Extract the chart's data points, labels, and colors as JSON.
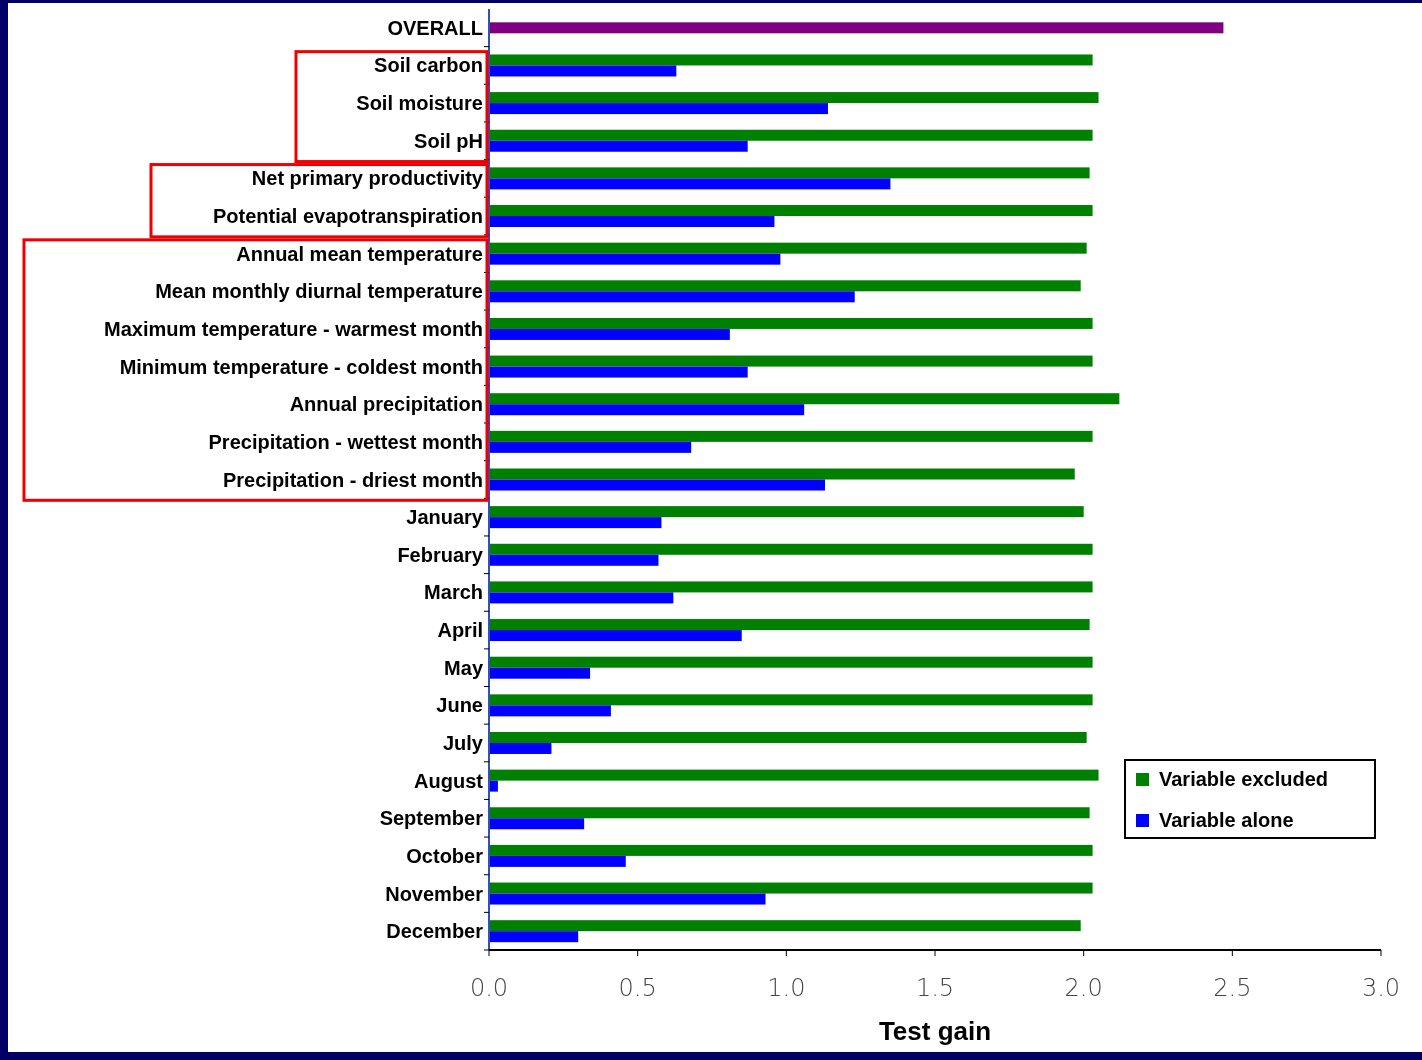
{
  "chart_data": {
    "type": "bar",
    "orientation": "horizontal",
    "xlabel": "Test gain",
    "categories": [
      "OVERALL",
      "Soil carbon",
      "Soil moisture",
      "Soil pH",
      "Net primary productivity",
      "Potential evapotranspiration",
      "Annual mean temperature",
      "Mean monthly diurnal temperature",
      "Maximum temperature - warmest month",
      "Minimum temperature - coldest month",
      "Annual precipitation",
      "Precipitation - wettest month",
      "Precipitation - driest month",
      "January",
      "February",
      "March",
      "April",
      "May",
      "June",
      "July",
      "August",
      "September",
      "October",
      "November",
      "December"
    ],
    "series": [
      {
        "color": "#800080",
        "values": [
          2.47,
          null,
          null,
          null,
          null,
          null,
          null,
          null,
          null,
          null,
          null,
          null,
          null,
          null,
          null,
          null,
          null,
          null,
          null,
          null,
          null,
          null,
          null,
          null,
          null
        ]
      },
      {
        "name": "Variable excluded",
        "color": "#008000",
        "values": [
          null,
          2.03,
          2.05,
          2.03,
          2.02,
          2.03,
          2.01,
          1.99,
          2.03,
          2.03,
          2.12,
          2.03,
          1.97,
          2.0,
          2.03,
          2.03,
          2.02,
          2.03,
          2.03,
          2.01,
          2.05,
          2.02,
          2.03,
          2.03,
          1.99
        ]
      },
      {
        "name": "Variable alone",
        "color": "#0000ff",
        "values": [
          null,
          0.63,
          1.14,
          0.87,
          1.35,
          0.96,
          0.98,
          1.23,
          0.81,
          0.87,
          1.06,
          0.68,
          1.13,
          0.58,
          0.57,
          0.62,
          0.85,
          0.34,
          0.41,
          0.21,
          0.03,
          0.32,
          0.46,
          0.93,
          0.3
        ]
      }
    ],
    "xlim": [
      0,
      3
    ],
    "xticks": [
      {
        "value": 0,
        "label": "0.0"
      },
      {
        "value": 0.5,
        "label": "0.5"
      },
      {
        "value": 1,
        "label": "1.0"
      },
      {
        "value": 1.5,
        "label": "1.5"
      },
      {
        "value": 2,
        "label": "2.0"
      },
      {
        "value": 2.5,
        "label": "2.5"
      },
      {
        "value": 3,
        "label": "3.0"
      }
    ],
    "grid": false,
    "legend": "bottom right"
  }
}
